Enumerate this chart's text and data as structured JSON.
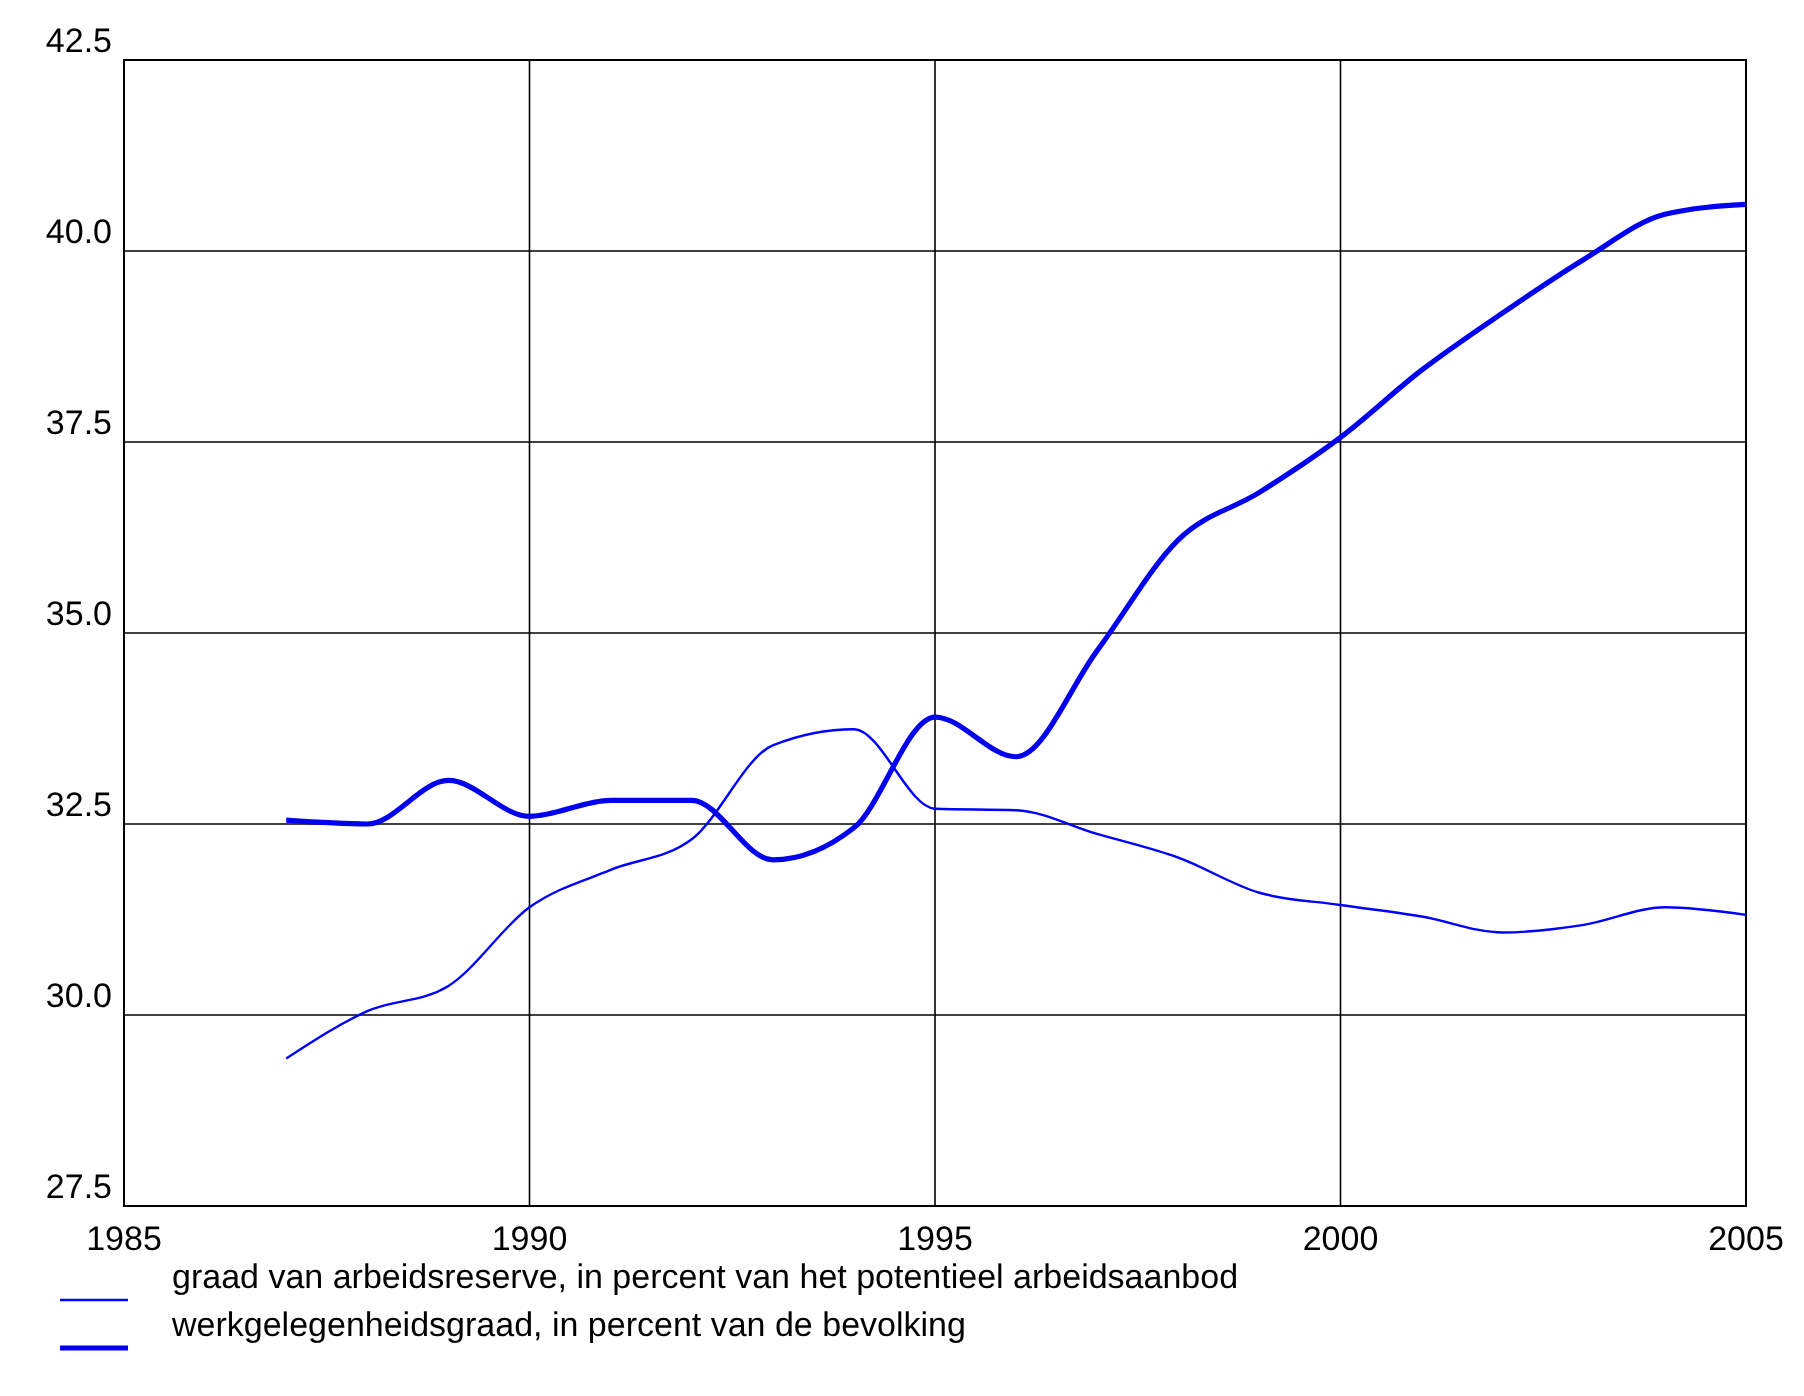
{
  "chart_data": {
    "type": "line",
    "x": [
      1987,
      1988,
      1989,
      1990,
      1991,
      1992,
      1993,
      1994,
      1995,
      1996,
      1997,
      1998,
      1999,
      2000,
      2001,
      2002,
      2003,
      2004,
      2005
    ],
    "series": [
      {
        "name": "graad van arbeidsreserve, in percent van het potentieel arbeidsaanbod",
        "color": "#0000ff",
        "values": [
          29.43,
          30.05,
          30.38,
          31.41,
          31.9,
          32.3,
          33.53,
          33.74,
          32.7,
          32.68,
          32.37,
          32.06,
          31.6,
          31.44,
          31.29,
          31.08,
          31.18,
          31.41,
          31.31
        ]
      },
      {
        "name": "werkgelegenheidsgraad, in percent van de bevolking",
        "color": "#0000ee",
        "values": [
          32.55,
          32.5,
          33.07,
          32.6,
          32.81,
          32.81,
          32.03,
          32.45,
          33.9,
          33.38,
          34.77,
          36.22,
          36.84,
          37.56,
          38.44,
          39.19,
          39.89,
          40.48,
          40.61
        ]
      }
    ],
    "xlim": [
      1985,
      2005
    ],
    "xticks": [
      1985,
      1990,
      1995,
      2000,
      2005
    ],
    "ylim": [
      27.5,
      42.5
    ],
    "yticks": [
      {
        "value": 27.5,
        "label": "27.5"
      },
      {
        "value": 30,
        "label": "30.0"
      },
      {
        "value": 32.5,
        "label": "32.5"
      },
      {
        "value": 35,
        "label": "35.0"
      },
      {
        "value": 37.5,
        "label": "37.5"
      },
      {
        "value": 40,
        "label": "40.0"
      },
      {
        "value": 42.5,
        "label": "42.5"
      }
    ],
    "grid": true,
    "legend": "bottom",
    "marker": "none",
    "line_style": "solid"
  }
}
